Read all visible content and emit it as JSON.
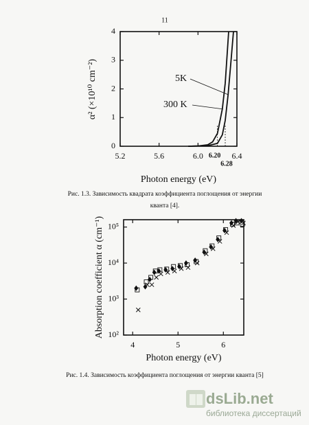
{
  "page_number": "11",
  "chart_data": [
    {
      "type": "line",
      "xlabel": "Photon energy (eV)",
      "ylabel": "α² (×10¹⁰ cm⁻²)",
      "xlim": [
        5.2,
        6.4
      ],
      "xticks": [
        5.2,
        5.6,
        {
          "value": 6.0,
          "label": "6.0"
        },
        6.4
      ],
      "ylim": [
        0,
        4
      ],
      "yticks": [
        0,
        1,
        2,
        3,
        4
      ],
      "series": [
        {
          "name": "5K",
          "color": "#111111",
          "x": [
            5.9,
            6.1,
            6.2,
            6.25,
            6.28,
            6.31,
            6.34,
            6.365
          ],
          "values": [
            0,
            0.02,
            0.1,
            0.4,
            0.9,
            1.8,
            3,
            4
          ]
        },
        {
          "name": "300 K",
          "color": "#111111",
          "x": [
            5.9,
            6.0,
            6.1,
            6.15,
            6.2,
            6.25,
            6.28,
            6.315
          ],
          "values": [
            0,
            0.01,
            0.05,
            0.15,
            0.45,
            1.3,
            2.2,
            4
          ]
        }
      ],
      "annotations": [
        {
          "text": "6.20",
          "x": 6.2
        },
        {
          "text": "6.28",
          "x": 6.28
        }
      ]
    },
    {
      "type": "scatter",
      "xlabel": "Photon energy (eV)",
      "ylabel": "Absorption coefficient α (cm⁻¹)",
      "log_y": true,
      "xlim": [
        3.8,
        6.45
      ],
      "xticks": [
        4,
        5,
        6
      ],
      "ylim": [
        100,
        160000
      ],
      "yticks": [
        {
          "value": 100,
          "label": "10²"
        },
        {
          "value": 1000,
          "label": "10³"
        },
        {
          "value": 10000,
          "label": "10⁴"
        },
        {
          "value": 100000,
          "label": "10⁵"
        }
      ],
      "x": [
        4.1,
        4.3,
        4.4,
        4.5,
        4.6,
        4.75,
        4.9,
        5.05,
        5.2,
        5.4,
        5.6,
        5.75,
        5.9,
        6.05,
        6.2,
        6.3,
        6.42
      ],
      "series": [
        {
          "marker": "diamond",
          "color": "#111111",
          "values": [
            2000,
            2200,
            3500,
            5500,
            6000,
            6500,
            7000,
            8000,
            10000,
            12000,
            20000,
            28000,
            45000,
            80000,
            130000,
            150000,
            150000
          ]
        },
        {
          "marker": "square",
          "color": "#111111",
          "values": [
            1800,
            3000,
            4000,
            6000,
            6500,
            6800,
            8000,
            8500,
            9000,
            11000,
            22000,
            30000,
            50000,
            85000,
            120000,
            130000,
            120000
          ]
        },
        {
          "marker": "cross",
          "color": "#111111",
          "values": [
            500,
            2500,
            2500,
            4000,
            5000,
            5500,
            6000,
            7000,
            7500,
            10000,
            18000,
            25000,
            40000,
            70000,
            110000,
            140000,
            130000
          ]
        }
      ]
    }
  ],
  "captions": [
    [
      "Рис. 1.3. Зависимость квадрата коэффициента поглощения от энергии",
      "кванта [4]."
    ],
    [
      "Рис. 1.4. Зависимость коэффициента поглощения от энергии кванта [5]"
    ]
  ],
  "watermark": {
    "brand": "dsLib.net",
    "tagline": "библиотека диссертаций"
  }
}
